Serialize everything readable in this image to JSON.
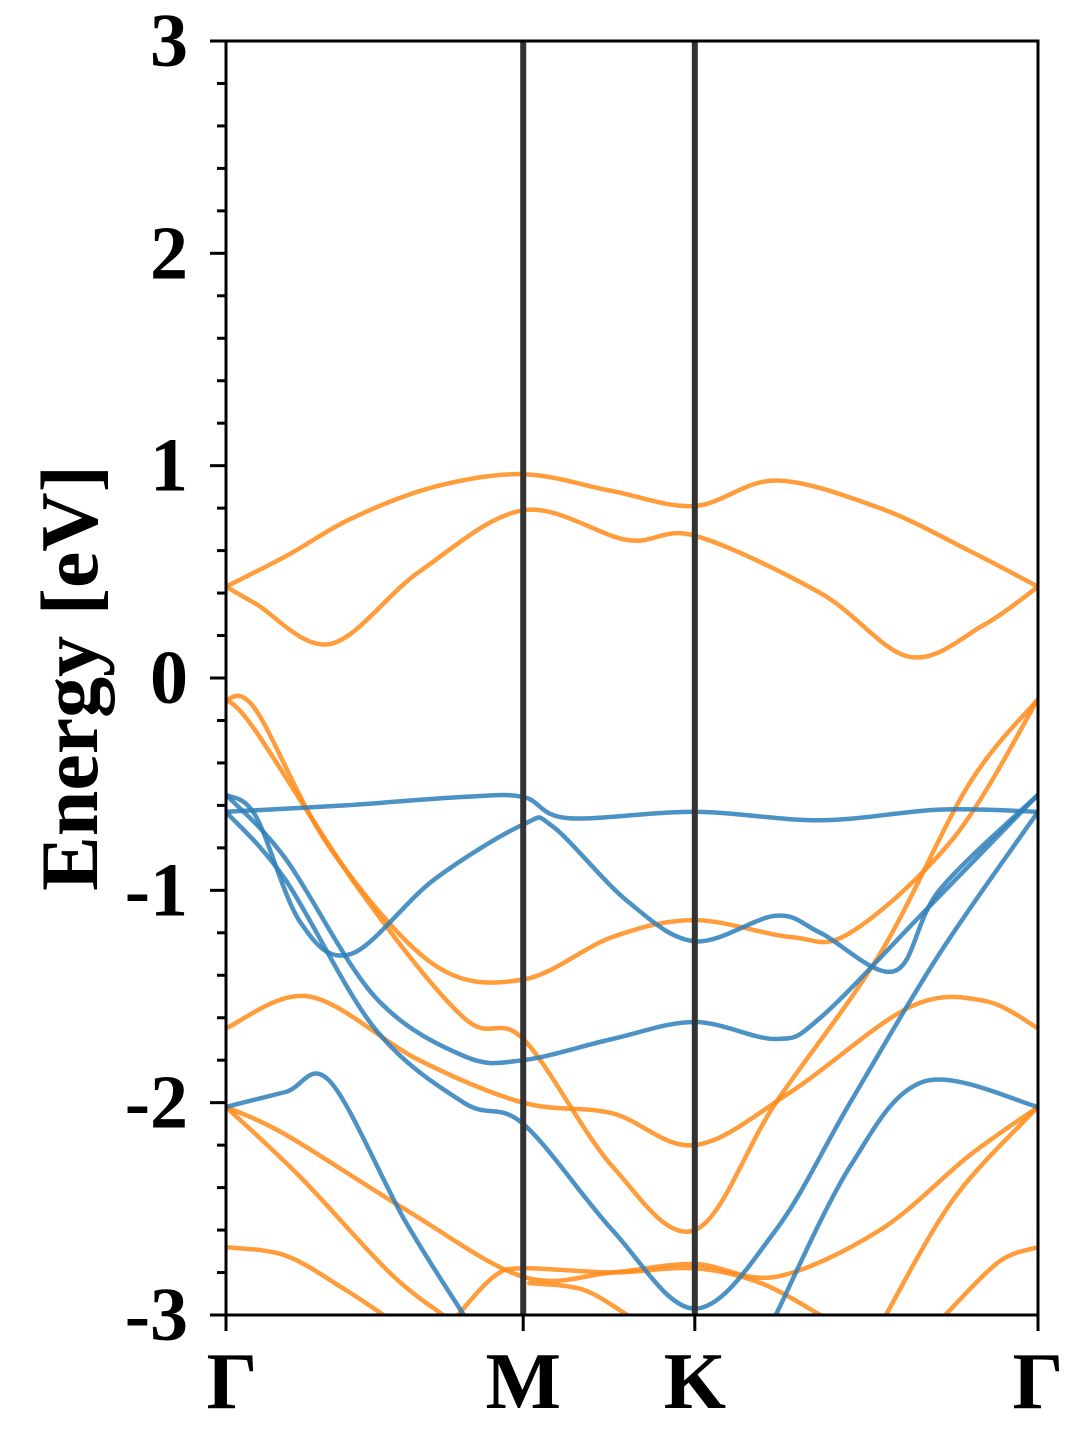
{
  "chart_data": {
    "type": "line",
    "title": "",
    "xlabel": "",
    "ylabel": "Energy [eV]",
    "ylim": [
      -3,
      3
    ],
    "yticks": [
      "3",
      "2",
      "1",
      "0",
      "-1",
      "-2",
      "-3"
    ],
    "xticks": [
      "Γ",
      "M",
      "K",
      "Γ"
    ],
    "xtick_positions": [
      0,
      1,
      1.5774,
      2.7321
    ],
    "grid": false,
    "legend": "none",
    "colors": {
      "spin1": "#ff8c1a",
      "spin2": "#2e7fba",
      "kpath_line": "#333333",
      "axes": "#000000"
    },
    "series": [
      {
        "color": "#ff8c1a",
        "x": [
          0,
          0.21,
          0.42,
          0.7,
          1.0,
          1.3,
          1.5774,
          1.85,
          2.2,
          2.5,
          2.7321
        ],
        "y": [
          0.43,
          0.58,
          0.75,
          0.9,
          0.96,
          0.88,
          0.81,
          0.93,
          0.8,
          0.6,
          0.43
        ]
      },
      {
        "color": "#ff8c1a",
        "x": [
          0,
          0.1,
          0.35,
          0.65,
          1.0,
          1.35,
          1.5774,
          2.0,
          2.3,
          2.55,
          2.7321
        ],
        "y": [
          0.43,
          0.35,
          0.16,
          0.5,
          0.79,
          0.65,
          0.67,
          0.4,
          0.1,
          0.25,
          0.43
        ]
      },
      {
        "color": "#ff8c1a",
        "x": [
          0,
          0.1,
          0.35,
          0.7,
          1.0,
          1.3,
          1.5774,
          1.9,
          2.1,
          2.45,
          2.7321
        ],
        "y": [
          -0.1,
          -0.15,
          -0.8,
          -1.35,
          -1.42,
          -1.22,
          -1.14,
          -1.22,
          -1.2,
          -0.75,
          -0.1
        ]
      },
      {
        "color": "#ff8c1a",
        "x": [
          0,
          0.1,
          0.45,
          0.8,
          1.0,
          1.3,
          1.5774,
          1.85,
          2.2,
          2.5,
          2.7321
        ],
        "y": [
          -0.1,
          -0.25,
          -1.0,
          -1.6,
          -1.7,
          -2.3,
          -2.6,
          -2.0,
          -1.3,
          -0.5,
          -0.1
        ]
      },
      {
        "color": "#ff8c1a",
        "x": [
          0,
          0.28,
          0.65,
          1.0,
          1.3,
          1.5774,
          1.9,
          2.3,
          2.55,
          2.7321
        ],
        "y": [
          -1.65,
          -1.5,
          -1.8,
          -2.0,
          -2.05,
          -2.2,
          -1.95,
          -1.55,
          -1.52,
          -1.65
        ]
      },
      {
        "color": "#ff8c1a",
        "x": [
          0,
          0.2,
          0.6,
          1.0,
          1.3,
          1.5774,
          1.85,
          2.2,
          2.5,
          2.7321
        ],
        "y": [
          -2.02,
          -2.15,
          -2.5,
          -2.82,
          -2.8,
          -2.76,
          -2.82,
          -2.6,
          -2.25,
          -2.02
        ]
      },
      {
        "color": "#ff8c1a",
        "x": [
          0,
          0.25,
          0.55,
          0.73
        ],
        "y": [
          -2.02,
          -2.35,
          -2.8,
          -3.0
        ]
      },
      {
        "color": "#ff8c1a",
        "x": [
          0,
          0.2,
          0.4,
          0.53
        ],
        "y": [
          -2.68,
          -2.72,
          -2.88,
          -3.0
        ]
      },
      {
        "color": "#ff8c1a",
        "x": [
          0.78,
          0.9,
          1.0,
          1.3,
          1.5774,
          1.8,
          2.0
        ],
        "y": [
          -3.0,
          -2.82,
          -2.78,
          -2.8,
          -2.78,
          -2.85,
          -3.0
        ]
      },
      {
        "color": "#ff8c1a",
        "x": [
          1.02,
          1.2,
          1.35
        ],
        "y": [
          -2.85,
          -2.88,
          -3.0
        ]
      },
      {
        "color": "#ff8c1a",
        "x": [
          2.22,
          2.45,
          2.7321
        ],
        "y": [
          -3.0,
          -2.45,
          -2.02
        ]
      },
      {
        "color": "#ff8c1a",
        "x": [
          2.42,
          2.6,
          2.7321
        ],
        "y": [
          -3.0,
          -2.75,
          -2.68
        ]
      },
      {
        "color": "#2e7fba",
        "x": [
          0,
          0.4,
          0.8,
          1.0,
          1.15,
          1.5774,
          2.0,
          2.4,
          2.7321
        ],
        "y": [
          -0.63,
          -0.6,
          -0.56,
          -0.56,
          -0.66,
          -0.63,
          -0.67,
          -0.62,
          -0.63
        ]
      },
      {
        "color": "#2e7fba",
        "x": [
          0,
          0.1,
          0.25,
          0.42,
          0.7,
          1.0,
          1.1,
          1.35,
          1.5774,
          1.85,
          2.0,
          2.25,
          2.4,
          2.7321
        ],
        "y": [
          -0.55,
          -0.65,
          -1.15,
          -1.3,
          -0.95,
          -0.69,
          -0.7,
          -1.05,
          -1.24,
          -1.12,
          -1.2,
          -1.38,
          -1.0,
          -0.55
        ]
      },
      {
        "color": "#2e7fba",
        "x": [
          0,
          0.2,
          0.5,
          0.8,
          1.0,
          1.3,
          1.5774,
          1.85,
          2.0,
          2.35,
          2.7321
        ],
        "y": [
          -0.55,
          -0.85,
          -1.5,
          -1.78,
          -1.8,
          -1.7,
          -1.62,
          -1.7,
          -1.6,
          -1.1,
          -0.55
        ]
      },
      {
        "color": "#2e7fba",
        "x": [
          0,
          0.2,
          0.5,
          0.8,
          1.0,
          1.3,
          1.5774,
          1.85,
          2.1,
          2.4,
          2.7321
        ],
        "y": [
          -0.63,
          -0.95,
          -1.65,
          -2.0,
          -2.1,
          -2.6,
          -2.97,
          -2.6,
          -2.0,
          -1.3,
          -0.63
        ]
      },
      {
        "color": "#2e7fba",
        "x": [
          0,
          0.2,
          0.35,
          0.6,
          0.8
        ],
        "y": [
          -2.02,
          -1.95,
          -1.9,
          -2.55,
          -3.0
        ]
      },
      {
        "color": "#2e7fba",
        "x": [
          1.85,
          2.1,
          2.35,
          2.7321
        ],
        "y": [
          -3.0,
          -2.3,
          -1.9,
          -2.02
        ]
      }
    ]
  }
}
